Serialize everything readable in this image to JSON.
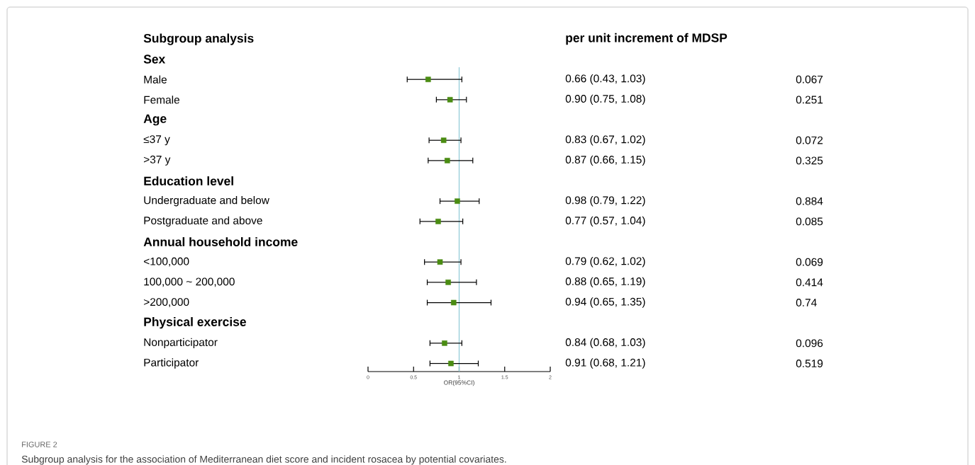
{
  "chart_data": {
    "type": "scatter",
    "orientation": "horizontal",
    "ylabel": "Subgroup analysis",
    "xlabel": "OR(95%CI)",
    "categories": [
      "Sex",
      "Male",
      "Female",
      "Age",
      "≤37 y",
      ">37 y",
      "Education level",
      "Undergraduate and below",
      "Postgraduate and above",
      "Annual household income",
      "<100,000",
      "100,000 ~ 200,000",
      ">200,000",
      "Physical exercise",
      "Nonparticipator",
      "Participator"
    ],
    "values": [
      null,
      0.66,
      0.9,
      null,
      0.83,
      0.87,
      null,
      0.98,
      0.77,
      null,
      0.79,
      0.88,
      0.94,
      null,
      0.84,
      0.91
    ],
    "errors": [
      null,
      [
        0.43,
        1.03
      ],
      [
        0.75,
        1.08
      ],
      null,
      [
        0.67,
        1.02
      ],
      [
        0.66,
        1.15
      ],
      null,
      [
        0.79,
        1.22
      ],
      [
        0.57,
        1.04
      ],
      null,
      [
        0.62,
        1.02
      ],
      [
        0.65,
        1.19
      ],
      [
        0.65,
        1.35
      ],
      null,
      [
        0.68,
        1.03
      ],
      [
        0.68,
        1.21
      ]
    ],
    "value_labels": [
      null,
      "0.66 (0.43, 1.03)",
      "0.90 (0.75, 1.08)",
      null,
      "0.83 (0.67, 1.02)",
      "0.87 (0.66, 1.15)",
      null,
      "0.98 (0.79, 1.22)",
      "0.77 (0.57, 1.04)",
      null,
      "0.79 (0.62, 1.02)",
      "0.88 (0.65, 1.19)",
      "0.94 (0.65, 1.35)",
      null,
      "0.84 (0.68, 1.03)",
      "0.91 (0.68, 1.21)"
    ],
    "color": "#4a8c12",
    "marker": "square",
    "xlim": [
      0,
      2
    ],
    "xticks": [
      0,
      0.5,
      1,
      1.5,
      2
    ],
    "ref_lines": [
      {
        "axis": "x",
        "value": 1,
        "color": "#8ec9d6"
      }
    ],
    "annotations": [
      "per unit increment of MDSP",
      "0.067",
      "0.251",
      "0.072",
      "0.325",
      "0.884",
      "0.085",
      "0.069",
      "0.414",
      "0.74",
      "0.096",
      "0.519",
      "FIGURE 2",
      "Subgroup analysis for the association of Mediterranean diet score and incident rosacea by potential covariates."
    ]
  }
}
